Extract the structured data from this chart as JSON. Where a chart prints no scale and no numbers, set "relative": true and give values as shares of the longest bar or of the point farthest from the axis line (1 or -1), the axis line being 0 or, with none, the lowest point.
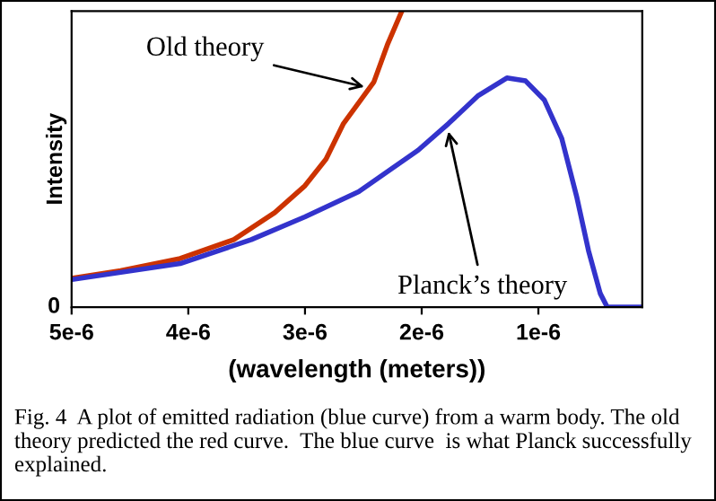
{
  "chart_data": {
    "type": "line",
    "relative": true,
    "xlabel": "(wavelength (meters))",
    "ylabel": "Intensity",
    "xlim": [
      5e-06,
      1.1e-07
    ],
    "xticks": [
      {
        "value": 5e-06,
        "label": "5e-6"
      },
      {
        "value": 4e-06,
        "label": "4e-6"
      },
      {
        "value": 3e-06,
        "label": "3e-6"
      },
      {
        "value": 2e-06,
        "label": "2e-6"
      },
      {
        "value": 1e-06,
        "label": "1e-6"
      }
    ],
    "series": [
      {
        "color": "#cc3300",
        "x": [
          5e-06,
          4.58e-06,
          4.07e-06,
          3.61e-06,
          3.26e-06,
          3e-06,
          2.82e-06,
          2.67e-06,
          2.41e-06,
          2.29e-06,
          2.17e-06
        ],
        "values": [
          0.097,
          0.123,
          0.164,
          0.228,
          0.319,
          0.41,
          0.5,
          0.62,
          0.76,
          0.89,
          1.0
        ]
      },
      {
        "color": "#3333cc",
        "x": [
          5e-06,
          4.07e-06,
          3.46e-06,
          3e-06,
          2.54e-06,
          2.03e-06,
          1.77e-06,
          1.52e-06,
          1.27e-06,
          1.11e-06,
          9.5e-07,
          8e-07,
          6.7e-07,
          5.7e-07,
          4.7e-07,
          4.1e-07,
          1.1e-07
        ],
        "values": [
          0.093,
          0.147,
          0.228,
          0.305,
          0.39,
          0.53,
          0.62,
          0.713,
          0.774,
          0.764,
          0.7,
          0.57,
          0.37,
          0.19,
          0.046,
          0.0,
          0.0
        ]
      }
    ],
    "annotations": [
      "0",
      {
        "text": "Old theory",
        "x": 2.45e-06,
        "y": 0.74
      },
      {
        "text": "Planck’s theory",
        "x": 1.78e-06,
        "y": 0.61
      },
      "Fig. 4  A plot of emitted radiation (blue curve) from a warm body. The old theory predicted the red curve.  The blue curve  is what Planck successfully explained."
    ],
    "grid": false
  }
}
